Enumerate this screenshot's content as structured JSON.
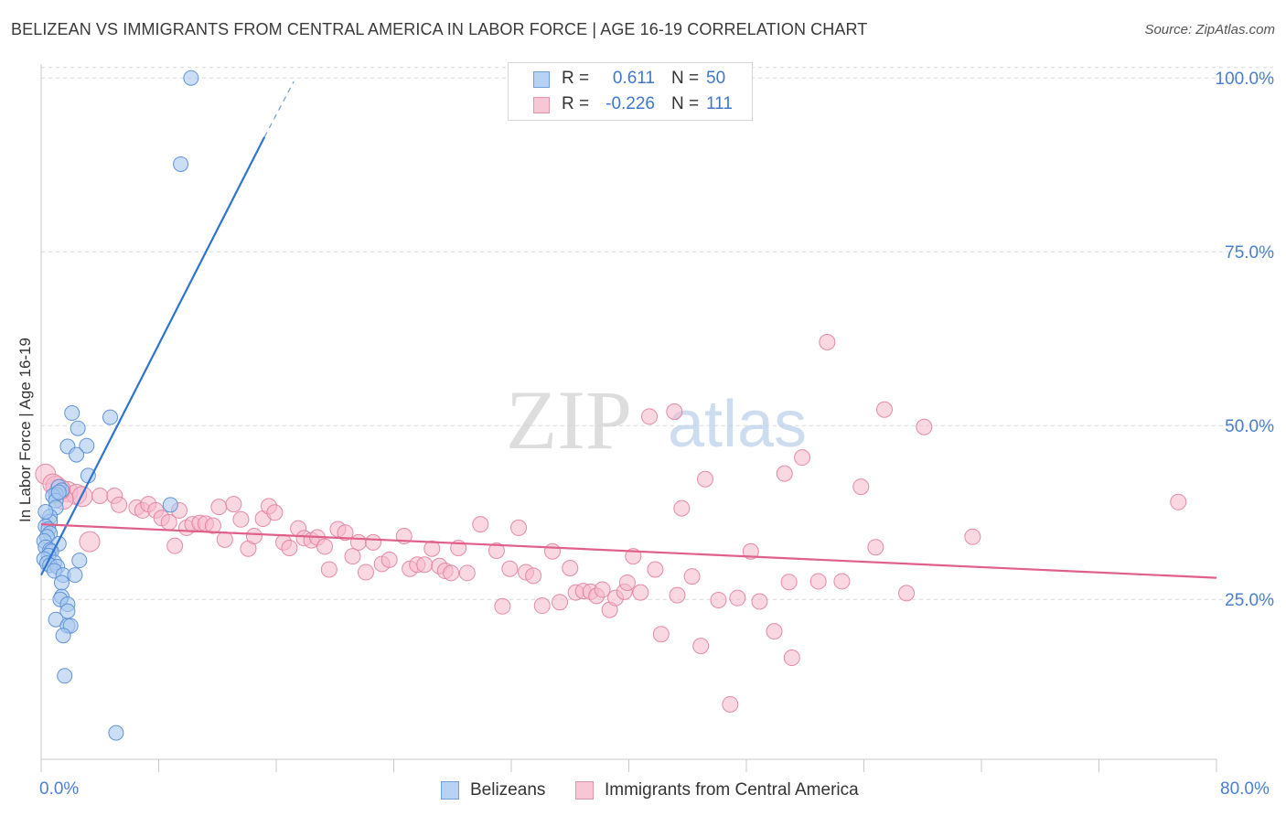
{
  "header": {
    "title": "BELIZEAN VS IMMIGRANTS FROM CENTRAL AMERICA IN LABOR FORCE | AGE 16-19 CORRELATION CHART",
    "source": "Source: ZipAtlas.com"
  },
  "watermark": {
    "zip": "ZIP",
    "atlas": "atlas"
  },
  "legend": {
    "series": [
      {
        "r_label": "R =",
        "r_value": "0.611",
        "n_label": "N =",
        "n_value": "50"
      },
      {
        "r_label": "R =",
        "r_value": "-0.226",
        "n_label": "N =",
        "n_value": "111"
      }
    ]
  },
  "bottom_legend": {
    "belizeans": "Belizeans",
    "immigrants": "Immigrants from Central America"
  },
  "x_axis_labels": {
    "min": "0.0%",
    "max": "80.0%"
  },
  "colors": {
    "blue_fill": "#a9c8f0",
    "blue_stroke": "#5b8fd6",
    "blue_line": "#2f74d0",
    "pink_fill": "#f6b8cb",
    "pink_stroke": "#e27fa0",
    "pink_line": "#e0608a",
    "axis_text": "#4a7fd0",
    "grid": "#d9d9d9"
  },
  "chart_data": {
    "type": "scatter",
    "title": "BELIZEAN VS IMMIGRANTS FROM CENTRAL AMERICA IN LABOR FORCE | AGE 16-19 CORRELATION CHART",
    "xlabel": "",
    "ylabel": "In Labor Force | Age 16-19",
    "xlim": [
      0,
      80
    ],
    "ylim": [
      2,
      102
    ],
    "y_ticks": [
      {
        "value": 25,
        "label": "25.0%"
      },
      {
        "value": 50,
        "label": "50.0%"
      },
      {
        "value": 75,
        "label": "75.0%"
      },
      {
        "value": 100,
        "label": "100.0%"
      }
    ],
    "x_ticks": [
      0,
      8,
      16,
      24,
      32,
      40,
      48,
      56,
      64,
      72,
      80
    ],
    "grid": true,
    "legend_position": "top-center",
    "series": [
      {
        "name": "Belizeans",
        "r": 0.611,
        "n": 50,
        "trend": {
          "x0": 0,
          "y0": 28.5,
          "x1": 15.2,
          "y1": 91.5,
          "dash_to_x": 17.2,
          "dash_to_y": 99.5
        },
        "points": [
          [
            10.2,
            100.0
          ],
          [
            9.5,
            87.6
          ],
          [
            2.1,
            51.8
          ],
          [
            4.7,
            51.2
          ],
          [
            2.5,
            49.6
          ],
          [
            1.8,
            47.0
          ],
          [
            3.1,
            47.1
          ],
          [
            2.4,
            45.8
          ],
          [
            3.2,
            42.8
          ],
          [
            1.2,
            41.2
          ],
          [
            1.4,
            40.7
          ],
          [
            1.0,
            40.1
          ],
          [
            0.8,
            39.9
          ],
          [
            1.0,
            39.2
          ],
          [
            1.0,
            38.2
          ],
          [
            8.8,
            38.6
          ],
          [
            0.6,
            36.9
          ],
          [
            0.6,
            36.2
          ],
          [
            0.3,
            35.5
          ],
          [
            0.5,
            35.1
          ],
          [
            0.6,
            34.5
          ],
          [
            0.4,
            34.0
          ],
          [
            0.2,
            33.4
          ],
          [
            1.2,
            33.0
          ],
          [
            0.3,
            32.5
          ],
          [
            0.6,
            32.1
          ],
          [
            0.7,
            31.9
          ],
          [
            0.5,
            31.3
          ],
          [
            0.2,
            30.8
          ],
          [
            0.9,
            30.3
          ],
          [
            2.6,
            30.6
          ],
          [
            0.4,
            30.2
          ],
          [
            0.6,
            29.9
          ],
          [
            1.1,
            29.7
          ],
          [
            0.9,
            29.1
          ],
          [
            1.5,
            28.5
          ],
          [
            2.3,
            28.5
          ],
          [
            1.4,
            27.4
          ],
          [
            1.4,
            25.4
          ],
          [
            1.3,
            25.0
          ],
          [
            1.8,
            24.3
          ],
          [
            1.8,
            23.3
          ],
          [
            1.0,
            22.1
          ],
          [
            1.8,
            21.2
          ],
          [
            2.0,
            21.2
          ],
          [
            1.5,
            19.8
          ],
          [
            1.6,
            14.0
          ],
          [
            5.1,
            5.8
          ],
          [
            1.2,
            40.4
          ],
          [
            0.3,
            37.6
          ]
        ]
      },
      {
        "name": "Immigrants from Central America",
        "r": -0.226,
        "n": 111,
        "trend": {
          "x0": 0,
          "y0": 35.8,
          "x1": 80,
          "y1": 28.1
        },
        "points": [
          [
            0.3,
            43.0
          ],
          [
            1.0,
            41.3
          ],
          [
            1.8,
            40.5
          ],
          [
            2.4,
            40.1
          ],
          [
            2.8,
            39.8
          ],
          [
            4.0,
            39.9
          ],
          [
            5.0,
            39.9
          ],
          [
            1.5,
            39.4
          ],
          [
            3.3,
            33.3
          ],
          [
            5.3,
            38.6
          ],
          [
            6.5,
            38.2
          ],
          [
            6.9,
            37.8
          ],
          [
            7.3,
            38.7
          ],
          [
            7.8,
            37.8
          ],
          [
            8.2,
            36.7
          ],
          [
            8.7,
            36.1
          ],
          [
            9.1,
            32.7
          ],
          [
            9.4,
            37.8
          ],
          [
            9.9,
            35.3
          ],
          [
            10.3,
            35.8
          ],
          [
            10.8,
            36.0
          ],
          [
            11.2,
            35.9
          ],
          [
            11.7,
            35.6
          ],
          [
            12.1,
            38.3
          ],
          [
            12.5,
            33.6
          ],
          [
            13.1,
            38.7
          ],
          [
            13.6,
            36.5
          ],
          [
            14.1,
            32.3
          ],
          [
            14.5,
            34.1
          ],
          [
            15.1,
            36.6
          ],
          [
            15.5,
            38.4
          ],
          [
            15.9,
            37.5
          ],
          [
            16.5,
            33.2
          ],
          [
            16.9,
            32.4
          ],
          [
            17.5,
            35.2
          ],
          [
            17.9,
            33.8
          ],
          [
            18.4,
            33.5
          ],
          [
            18.8,
            33.9
          ],
          [
            19.3,
            32.6
          ],
          [
            19.6,
            29.3
          ],
          [
            20.2,
            35.1
          ],
          [
            20.7,
            34.6
          ],
          [
            21.2,
            31.2
          ],
          [
            21.6,
            33.2
          ],
          [
            22.1,
            28.9
          ],
          [
            22.6,
            33.2
          ],
          [
            23.2,
            30.1
          ],
          [
            23.7,
            30.7
          ],
          [
            24.7,
            34.1
          ],
          [
            25.1,
            29.4
          ],
          [
            25.6,
            30.0
          ],
          [
            26.1,
            30.0
          ],
          [
            26.6,
            32.3
          ],
          [
            27.1,
            29.8
          ],
          [
            27.5,
            29.1
          ],
          [
            27.9,
            28.8
          ],
          [
            28.4,
            32.4
          ],
          [
            29.0,
            28.8
          ],
          [
            29.9,
            35.8
          ],
          [
            31.0,
            32.0
          ],
          [
            31.4,
            24.0
          ],
          [
            31.9,
            29.4
          ],
          [
            32.5,
            35.3
          ],
          [
            33.0,
            28.9
          ],
          [
            33.5,
            28.4
          ],
          [
            34.1,
            24.1
          ],
          [
            34.8,
            31.9
          ],
          [
            35.3,
            24.6
          ],
          [
            36.0,
            29.5
          ],
          [
            36.4,
            26.0
          ],
          [
            36.9,
            26.2
          ],
          [
            37.4,
            26.1
          ],
          [
            37.8,
            25.5
          ],
          [
            38.2,
            26.4
          ],
          [
            38.7,
            23.5
          ],
          [
            39.1,
            25.2
          ],
          [
            39.7,
            26.1
          ],
          [
            39.9,
            27.4
          ],
          [
            40.3,
            31.2
          ],
          [
            40.8,
            26.0
          ],
          [
            41.4,
            51.3
          ],
          [
            41.8,
            29.3
          ],
          [
            42.2,
            20.0
          ],
          [
            43.1,
            52.0
          ],
          [
            43.3,
            25.6
          ],
          [
            43.6,
            38.1
          ],
          [
            44.3,
            28.3
          ],
          [
            44.9,
            18.3
          ],
          [
            45.2,
            42.3
          ],
          [
            46.1,
            24.9
          ],
          [
            46.9,
            9.9
          ],
          [
            47.4,
            25.2
          ],
          [
            48.3,
            31.9
          ],
          [
            48.9,
            24.7
          ],
          [
            49.9,
            20.4
          ],
          [
            50.9,
            27.5
          ],
          [
            50.6,
            43.1
          ],
          [
            51.1,
            16.6
          ],
          [
            51.8,
            45.4
          ],
          [
            52.9,
            27.6
          ],
          [
            53.5,
            62.0
          ],
          [
            54.5,
            27.6
          ],
          [
            55.8,
            41.2
          ],
          [
            56.8,
            32.5
          ],
          [
            57.4,
            52.3
          ],
          [
            58.9,
            25.9
          ],
          [
            60.1,
            49.8
          ],
          [
            63.4,
            34.0
          ],
          [
            77.4,
            39.0
          ],
          [
            0.8,
            41.6
          ],
          [
            1.3,
            40.8
          ]
        ]
      }
    ]
  }
}
